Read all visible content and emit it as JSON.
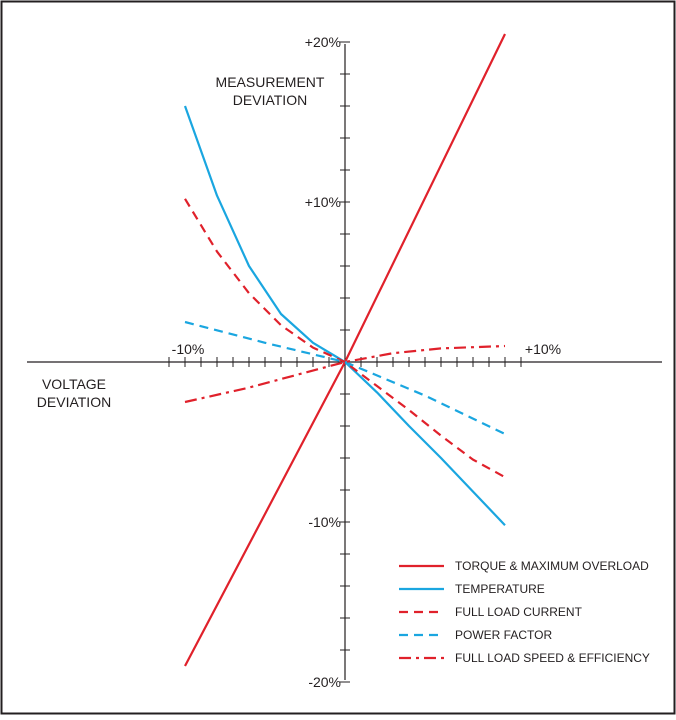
{
  "chart_data": {
    "type": "line",
    "x_label_lines": [
      "VOLTAGE",
      "DEVIATION"
    ],
    "y_label_lines": [
      "MEASUREMENT",
      "DEVIATION"
    ],
    "xlim": [
      -10,
      10
    ],
    "ylim": [
      -20,
      20
    ],
    "x_tick_step": 1,
    "y_tick_step": 2,
    "x_tick_labels": [
      {
        "value": -10,
        "label": "-10%"
      },
      {
        "value": 10,
        "label": "+10%"
      }
    ],
    "y_tick_labels": [
      {
        "value": 20,
        "label": "+20%"
      },
      {
        "value": 10,
        "label": "+10%"
      },
      {
        "value": -10,
        "label": "-10%"
      },
      {
        "value": -20,
        "label": "-20%"
      }
    ],
    "grid": false,
    "legend_position": "bottom-right",
    "series": [
      {
        "name": "TORQUE & MAXIMUM OVERLOAD",
        "color": "#e0212b",
        "dash": "solid",
        "points": [
          [
            -10,
            -19
          ],
          [
            0,
            0
          ],
          [
            10,
            20.5
          ]
        ]
      },
      {
        "name": "TEMPERATURE",
        "color": "#1aa6e0",
        "dash": "solid",
        "points": [
          [
            -10,
            16
          ],
          [
            -8,
            10.4
          ],
          [
            -6,
            6
          ],
          [
            -4,
            3
          ],
          [
            -2,
            1.2
          ],
          [
            0,
            0
          ],
          [
            2,
            -1.9
          ],
          [
            4,
            -4
          ],
          [
            6,
            -6
          ],
          [
            8,
            -8.1
          ],
          [
            10,
            -10.2
          ]
        ]
      },
      {
        "name": "FULL LOAD CURRENT",
        "color": "#e0212b",
        "dash": "dashed",
        "points": [
          [
            -10,
            10.2
          ],
          [
            -8,
            6.9
          ],
          [
            -6,
            4.3
          ],
          [
            -4,
            2.3
          ],
          [
            -2,
            0.9
          ],
          [
            0,
            0
          ],
          [
            2,
            -1.5
          ],
          [
            4,
            -3
          ],
          [
            6,
            -4.6
          ],
          [
            8,
            -6.1
          ],
          [
            10,
            -7.2
          ]
        ]
      },
      {
        "name": "POWER FACTOR",
        "color": "#1aa6e0",
        "dash": "dashed",
        "points": [
          [
            -10,
            2.5
          ],
          [
            -5,
            1.2
          ],
          [
            0,
            0
          ],
          [
            5,
            -2.1
          ],
          [
            10,
            -4.5
          ]
        ]
      },
      {
        "name": "FULL LOAD SPEED & EFFICIENCY",
        "color": "#e0212b",
        "dash": "dashdot",
        "points": [
          [
            -10,
            -2.5
          ],
          [
            -6,
            -1.6
          ],
          [
            -3,
            -0.8
          ],
          [
            0,
            0
          ],
          [
            3,
            0.55
          ],
          [
            6,
            0.85
          ],
          [
            10,
            1.0
          ]
        ]
      }
    ]
  }
}
